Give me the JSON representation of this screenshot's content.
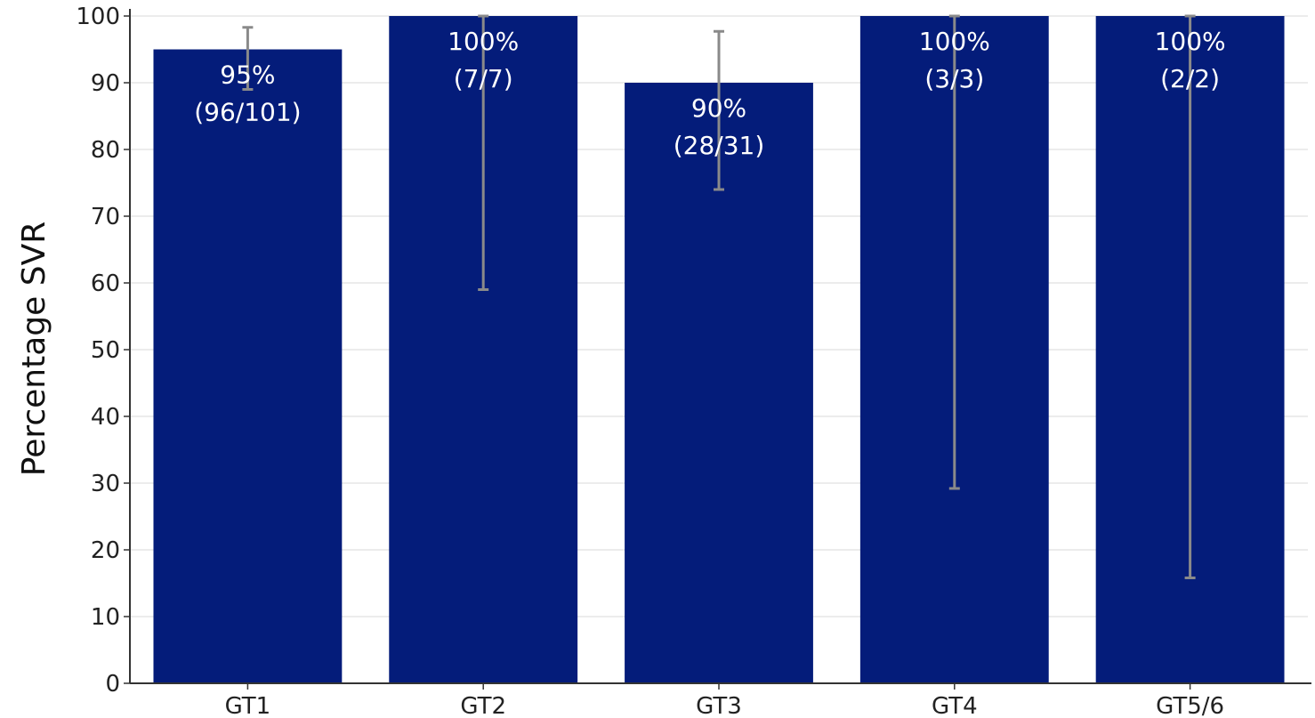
{
  "chart_data": {
    "type": "bar",
    "title": "",
    "xlabel": "",
    "ylabel": "Percentage SVR",
    "ylim": [
      0,
      100
    ],
    "yticks": [
      0,
      10,
      20,
      30,
      40,
      50,
      60,
      70,
      80,
      90,
      100
    ],
    "grid": true,
    "categories": [
      "GT1",
      "GT2",
      "GT3",
      "GT4",
      "GT5/6"
    ],
    "values": [
      95,
      100,
      90,
      100,
      100
    ],
    "error_bars": [
      {
        "low": 89,
        "high": 98.3
      },
      {
        "low": 59,
        "high": 100
      },
      {
        "low": 74,
        "high": 97.7
      },
      {
        "low": 29.2,
        "high": 100
      },
      {
        "low": 15.8,
        "high": 100
      }
    ],
    "data_labels": [
      {
        "pct": "95%",
        "count": "(96/101)"
      },
      {
        "pct": "100%",
        "count": "(7/7)"
      },
      {
        "pct": "90%",
        "count": "(28/31)"
      },
      {
        "pct": "100%",
        "count": "(3/3)"
      },
      {
        "pct": "100%",
        "count": "(2/2)"
      }
    ],
    "colors": {
      "bar": "#041c7a",
      "error_bar": "#8a8a8a",
      "grid": "#d9d9d9",
      "axis": "#333333"
    }
  }
}
